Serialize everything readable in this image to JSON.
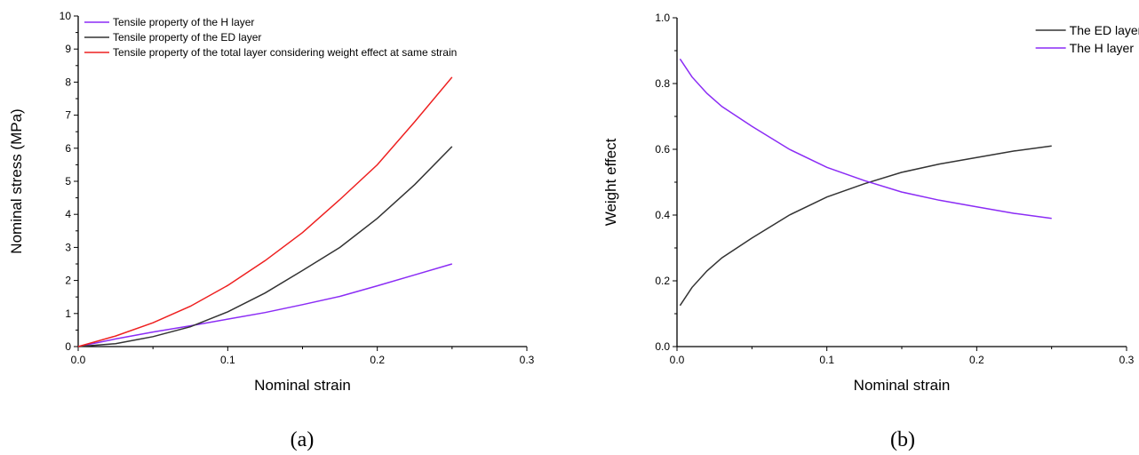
{
  "chart_data": [
    {
      "type": "line",
      "caption": "(a)",
      "xlabel": "Nominal strain",
      "ylabel": "Nominal stress (MPa)",
      "xlim": [
        0,
        0.3
      ],
      "ylim": [
        0,
        10
      ],
      "xticks": [
        "0.0",
        "0.1",
        "0.2",
        "0.3"
      ],
      "yticks": [
        "0",
        "1",
        "2",
        "3",
        "4",
        "5",
        "6",
        "7",
        "8",
        "9",
        "10"
      ],
      "legend_position": "top-left",
      "grid": false,
      "series": [
        {
          "name": "Tensile property of the H layer",
          "color": "#8b2cf5",
          "x": [
            0,
            0.025,
            0.05,
            0.075,
            0.1,
            0.125,
            0.15,
            0.175,
            0.2,
            0.225,
            0.25
          ],
          "y": [
            0,
            0.23,
            0.44,
            0.63,
            0.83,
            1.03,
            1.27,
            1.52,
            1.84,
            2.17,
            2.5
          ]
        },
        {
          "name": "Tensile property of the ED layer",
          "color": "#333333",
          "x": [
            0,
            0.025,
            0.05,
            0.075,
            0.1,
            0.125,
            0.15,
            0.175,
            0.2,
            0.225,
            0.25
          ],
          "y": [
            0,
            0.09,
            0.3,
            0.6,
            1.05,
            1.62,
            2.3,
            3.0,
            3.88,
            4.9,
            6.05
          ]
        },
        {
          "name": "Tensile property of the total layer considering weight effect at same strain",
          "color": "#ee2020",
          "x": [
            0,
            0.025,
            0.05,
            0.075,
            0.1,
            0.125,
            0.15,
            0.175,
            0.2,
            0.225,
            0.25
          ],
          "y": [
            0,
            0.32,
            0.72,
            1.22,
            1.85,
            2.6,
            3.45,
            4.45,
            5.5,
            6.8,
            8.15
          ]
        }
      ]
    },
    {
      "type": "line",
      "caption": "(b)",
      "xlabel": "Nominal strain",
      "ylabel": "Weight effect",
      "xlim": [
        0,
        0.3
      ],
      "ylim": [
        0,
        1.0
      ],
      "xticks": [
        "0.0",
        "0.1",
        "0.2",
        "0.3"
      ],
      "yticks": [
        "0.0",
        "0.2",
        "0.4",
        "0.6",
        "0.8",
        "1.0"
      ],
      "legend_position": "top-right",
      "grid": false,
      "series": [
        {
          "name": "The ED layer",
          "color": "#333333",
          "x": [
            0.002,
            0.01,
            0.02,
            0.03,
            0.05,
            0.075,
            0.1,
            0.125,
            0.15,
            0.175,
            0.2,
            0.225,
            0.25
          ],
          "y": [
            0.125,
            0.18,
            0.23,
            0.27,
            0.33,
            0.4,
            0.455,
            0.495,
            0.53,
            0.555,
            0.575,
            0.595,
            0.61
          ]
        },
        {
          "name": "The H layer",
          "color": "#8b2cf5",
          "x": [
            0.002,
            0.01,
            0.02,
            0.03,
            0.05,
            0.075,
            0.1,
            0.125,
            0.15,
            0.175,
            0.2,
            0.225,
            0.25
          ],
          "y": [
            0.875,
            0.82,
            0.77,
            0.73,
            0.67,
            0.6,
            0.545,
            0.505,
            0.47,
            0.445,
            0.425,
            0.405,
            0.39
          ]
        }
      ]
    }
  ]
}
